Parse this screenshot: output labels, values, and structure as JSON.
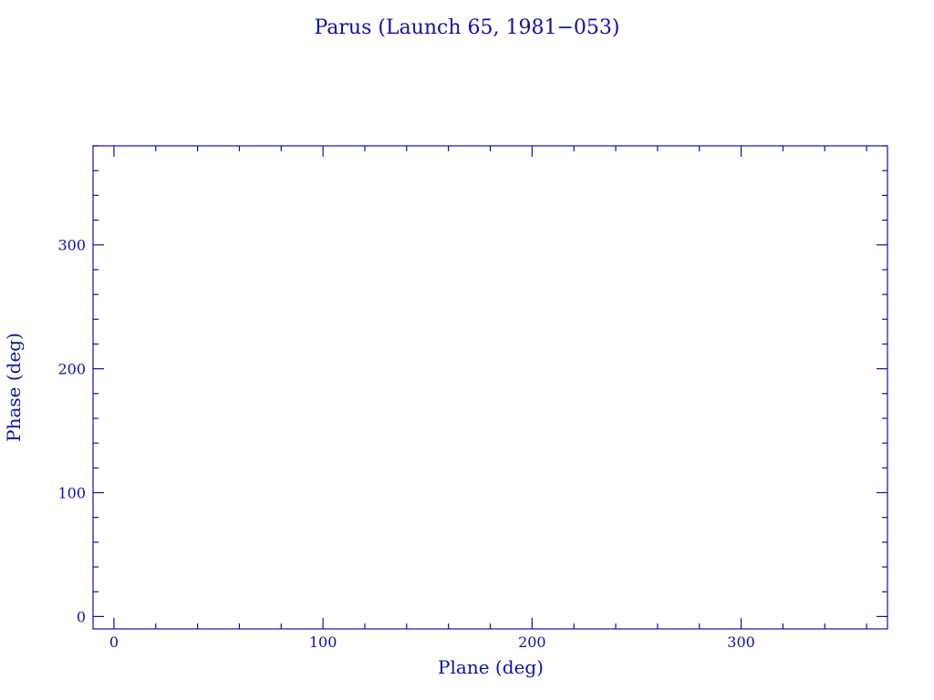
{
  "chart_data": {
    "type": "scatter",
    "title": "Parus (Launch 65, 1981−053)",
    "xlabel": "Plane (deg)",
    "ylabel": "Phase (deg)",
    "xlim": [
      -10,
      370
    ],
    "ylim": [
      -10,
      380
    ],
    "x_ticks": [
      "0",
      "100",
      "200",
      "300"
    ],
    "y_ticks": [
      "0",
      "100",
      "200",
      "300"
    ],
    "x_major": [
      0,
      100,
      200,
      300
    ],
    "y_major": [
      0,
      100,
      200,
      300
    ],
    "minor_step": 20,
    "grid": false,
    "points": [],
    "color": "#1010a8"
  }
}
